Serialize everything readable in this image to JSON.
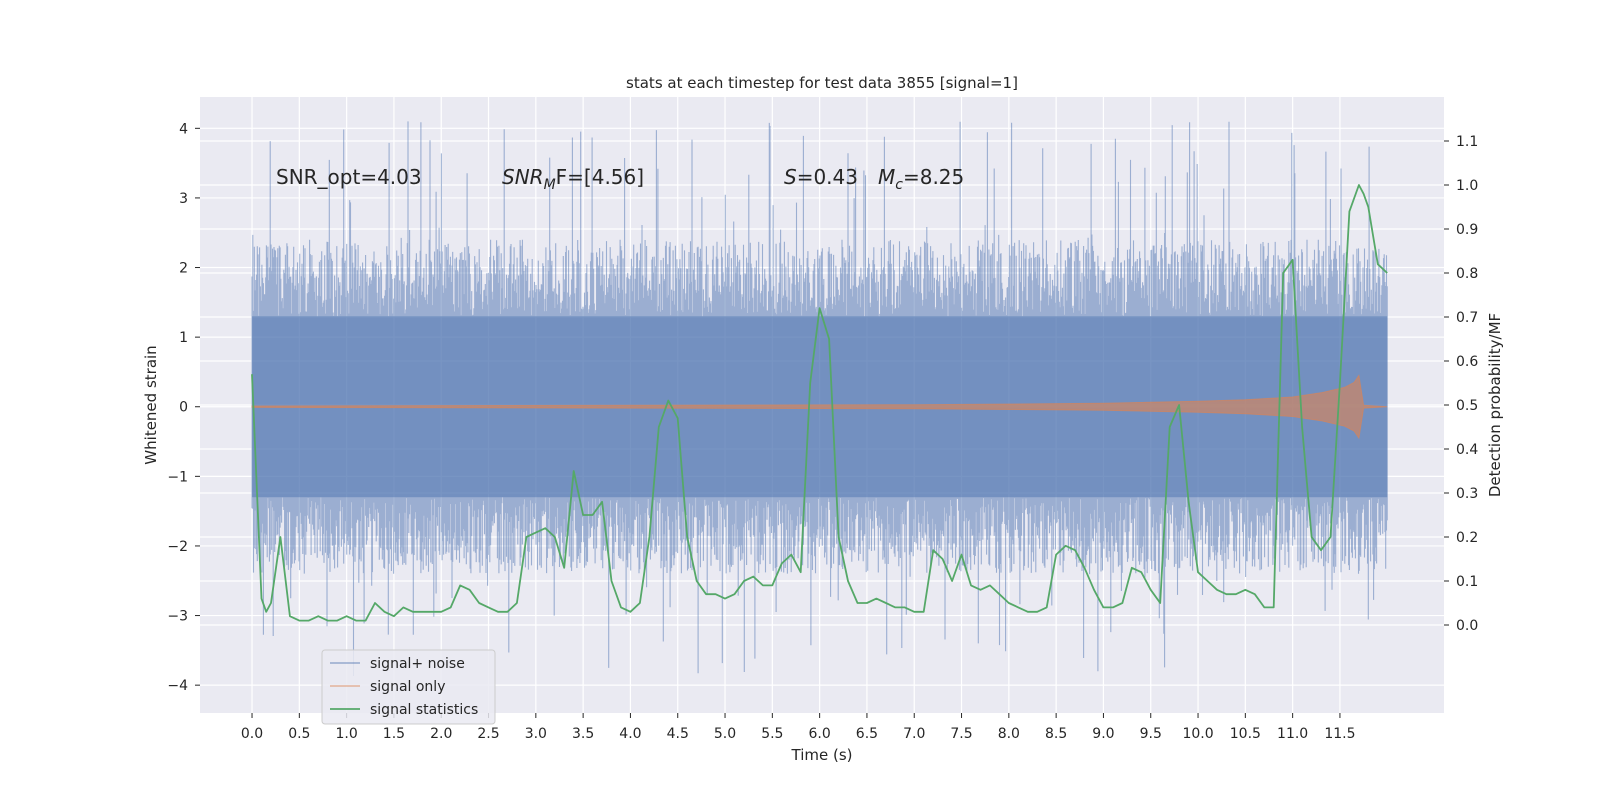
{
  "chart_data": {
    "type": "line",
    "title": "stats at each timestep for test data 3855 [signal=1]",
    "xlabel": "Time (s)",
    "ylabel_left": "Whitened strain",
    "ylabel_right": "Detection probability/MF",
    "xlim": [
      -0.55,
      12.6
    ],
    "ylim_left": [
      -4.4,
      4.45
    ],
    "ylim_right": [
      -0.2,
      1.2
    ],
    "x_ticks": [
      "0.0",
      "0.5",
      "1.0",
      "1.5",
      "2.0",
      "2.5",
      "3.0",
      "3.5",
      "4.0",
      "4.5",
      "5.0",
      "5.5",
      "6.0",
      "6.5",
      "7.0",
      "7.5",
      "8.0",
      "8.5",
      "9.0",
      "9.5",
      "10.0",
      "10.5",
      "11.0",
      "11.5"
    ],
    "y_ticks_left": [
      "4",
      "3",
      "2",
      "1",
      "0",
      "−1",
      "−2",
      "−3",
      "−4"
    ],
    "y_ticks_right": [
      "1.1",
      "1.0",
      "0.9",
      "0.8",
      "0.7",
      "0.6",
      "0.5",
      "0.4",
      "0.3",
      "0.2",
      "0.1",
      "0.0"
    ],
    "grid": true,
    "legend_position": "lower-left",
    "annotations": {
      "snr_opt": "SNR_opt=4.03",
      "snr_mf_prefix": "SNR",
      "snr_mf_sub": "M",
      "snr_mf_suffix": "F=[4.56]",
      "s_symbol": "S",
      "s_value": "=0.43",
      "mc_symbol": "M",
      "mc_sub": "c",
      "mc_value": "=8.25"
    },
    "series": [
      {
        "name": "signal+ noise",
        "color": "#4c72b0",
        "x_range": [
          0,
          12.0
        ],
        "band_core": [
          -1.3,
          1.3
        ],
        "band_typical": [
          -2.4,
          2.4
        ],
        "extremes": [
          -3.9,
          4.1
        ]
      },
      {
        "name": "signal only",
        "color": "#dd8452",
        "envelope": {
          "x": [
            0,
            4.0,
            7.0,
            9.0,
            10.0,
            10.5,
            11.0,
            11.3,
            11.55,
            11.65,
            11.7,
            11.75,
            12.0
          ],
          "y": [
            0.01,
            0.02,
            0.03,
            0.05,
            0.08,
            0.1,
            0.14,
            0.2,
            0.28,
            0.35,
            0.45,
            0.02,
            0.0
          ]
        }
      },
      {
        "name": "signal statistics",
        "color": "#55a868",
        "x": [
          0.0,
          0.1,
          0.15,
          0.2,
          0.3,
          0.4,
          0.5,
          0.6,
          0.7,
          0.8,
          0.9,
          1.0,
          1.1,
          1.2,
          1.3,
          1.4,
          1.5,
          1.6,
          1.7,
          1.8,
          1.9,
          2.0,
          2.1,
          2.2,
          2.3,
          2.4,
          2.5,
          2.6,
          2.7,
          2.8,
          2.9,
          3.0,
          3.1,
          3.2,
          3.3,
          3.4,
          3.5,
          3.6,
          3.7,
          3.8,
          3.9,
          4.0,
          4.1,
          4.2,
          4.3,
          4.4,
          4.5,
          4.6,
          4.7,
          4.8,
          4.9,
          5.0,
          5.1,
          5.2,
          5.3,
          5.4,
          5.5,
          5.6,
          5.7,
          5.8,
          5.9,
          6.0,
          6.1,
          6.2,
          6.3,
          6.4,
          6.5,
          6.6,
          6.7,
          6.8,
          6.9,
          7.0,
          7.1,
          7.2,
          7.3,
          7.4,
          7.5,
          7.6,
          7.7,
          7.8,
          7.9,
          8.0,
          8.1,
          8.2,
          8.3,
          8.4,
          8.5,
          8.6,
          8.7,
          8.8,
          8.9,
          9.0,
          9.1,
          9.2,
          9.3,
          9.4,
          9.5,
          9.6,
          9.7,
          9.8,
          9.9,
          10.0,
          10.1,
          10.2,
          10.3,
          10.4,
          10.5,
          10.6,
          10.7,
          10.8,
          10.9,
          11.0,
          11.1,
          11.2,
          11.3,
          11.4,
          11.5,
          11.6,
          11.7,
          11.75,
          11.8,
          11.9,
          12.0
        ],
        "y": [
          0.57,
          0.06,
          0.03,
          0.05,
          0.2,
          0.02,
          0.01,
          0.01,
          0.02,
          0.01,
          0.01,
          0.02,
          0.01,
          0.01,
          0.05,
          0.03,
          0.02,
          0.04,
          0.03,
          0.03,
          0.03,
          0.03,
          0.04,
          0.09,
          0.08,
          0.05,
          0.04,
          0.03,
          0.03,
          0.05,
          0.2,
          0.21,
          0.22,
          0.2,
          0.13,
          0.35,
          0.25,
          0.25,
          0.28,
          0.1,
          0.04,
          0.03,
          0.05,
          0.2,
          0.45,
          0.51,
          0.47,
          0.2,
          0.1,
          0.07,
          0.07,
          0.06,
          0.07,
          0.1,
          0.11,
          0.09,
          0.09,
          0.14,
          0.16,
          0.12,
          0.55,
          0.72,
          0.65,
          0.2,
          0.1,
          0.05,
          0.05,
          0.06,
          0.05,
          0.04,
          0.04,
          0.03,
          0.03,
          0.17,
          0.15,
          0.1,
          0.16,
          0.09,
          0.08,
          0.09,
          0.07,
          0.05,
          0.04,
          0.03,
          0.03,
          0.04,
          0.16,
          0.18,
          0.17,
          0.13,
          0.08,
          0.04,
          0.04,
          0.05,
          0.13,
          0.12,
          0.08,
          0.05,
          0.45,
          0.5,
          0.28,
          0.12,
          0.1,
          0.08,
          0.07,
          0.07,
          0.08,
          0.07,
          0.04,
          0.04,
          0.8,
          0.83,
          0.45,
          0.2,
          0.17,
          0.2,
          0.55,
          0.94,
          1.0,
          0.98,
          0.95,
          0.82,
          0.8
        ]
      }
    ]
  }
}
